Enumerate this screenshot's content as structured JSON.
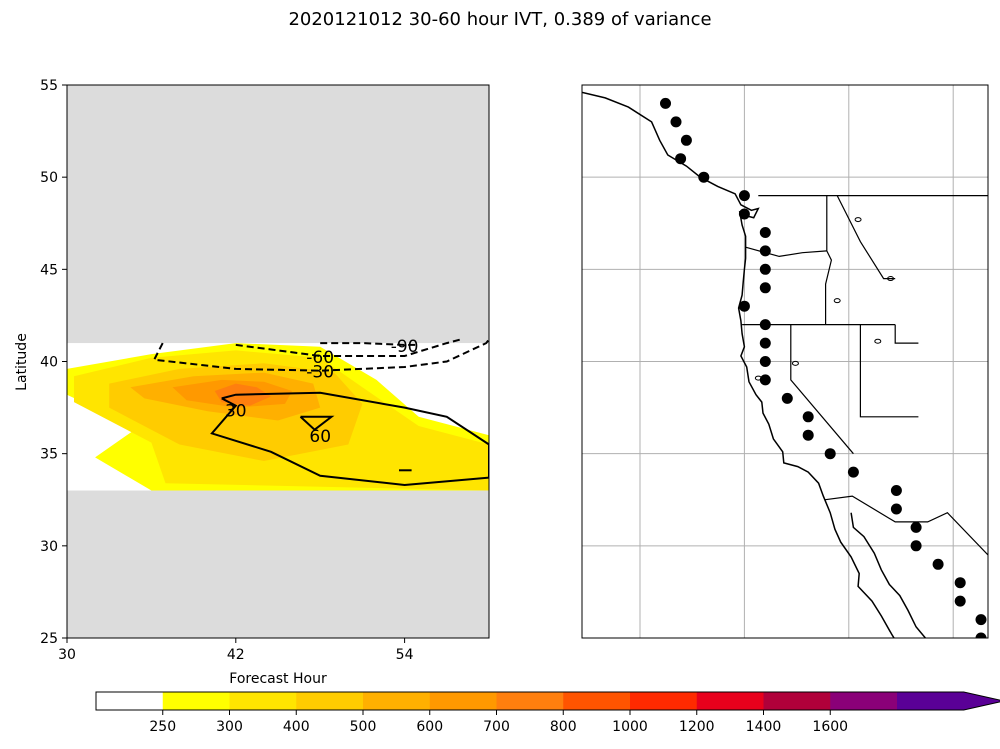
{
  "title": "2020121012 30-60 hour IVT, 0.389 of variance",
  "chart_data": [
    {
      "type": "contour",
      "xlabel": "Forecast Hour",
      "ylabel": "Latitude",
      "xlim": [
        30,
        60
      ],
      "ylim": [
        25,
        55
      ],
      "xticks": [
        30,
        42,
        54
      ],
      "yticks": [
        25,
        30,
        35,
        40,
        45,
        50,
        55
      ],
      "data_band_lat": [
        33,
        41
      ],
      "masked_color": "#dcdcdc",
      "filled_levels": [
        {
          "level": 250,
          "color": "#ffff00",
          "outline": [
            [
              30,
              39.6
            ],
            [
              36,
              40.4
            ],
            [
              42,
              41
            ],
            [
              48,
              40.8
            ],
            [
              52,
              39
            ],
            [
              55,
              37
            ],
            [
              60,
              36
            ],
            [
              60,
              33
            ],
            [
              36,
              33
            ],
            [
              32,
              34.8
            ],
            [
              35,
              36.4
            ],
            [
              30,
              38.2
            ]
          ]
        },
        {
          "level": 300,
          "color": "#ffe500",
          "outline": [
            [
              30.5,
              39.2
            ],
            [
              36,
              40.2
            ],
            [
              42,
              40.6
            ],
            [
              48,
              40.2
            ],
            [
              51,
              38.6
            ],
            [
              55,
              36.5
            ],
            [
              60,
              35.5
            ],
            [
              60,
              33
            ],
            [
              37,
              33.4
            ],
            [
              36,
              35.6
            ],
            [
              30.5,
              37.8
            ]
          ]
        },
        {
          "level": 400,
          "color": "#ffcc00",
          "outline": [
            [
              33,
              38.8
            ],
            [
              38,
              39.6
            ],
            [
              44,
              39.9
            ],
            [
              49,
              39.4
            ],
            [
              51,
              37.7
            ],
            [
              50,
              35.5
            ],
            [
              44,
              34.6
            ],
            [
              38,
              35.5
            ],
            [
              33,
              37.5
            ]
          ]
        },
        {
          "level": 500,
          "color": "#ffb000",
          "outline": [
            [
              34.5,
              38.6
            ],
            [
              39,
              39.2
            ],
            [
              44,
              39.4
            ],
            [
              47.5,
              38.8
            ],
            [
              48,
              37.5
            ],
            [
              45,
              36.8
            ],
            [
              40,
              37.3
            ],
            [
              35.5,
              38
            ]
          ]
        },
        {
          "level": 600,
          "color": "#ff9900",
          "outline": [
            [
              37.5,
              38.6
            ],
            [
              41,
              39
            ],
            [
              44,
              38.9
            ],
            [
              46,
              38.4
            ],
            [
              45.5,
              37.7
            ],
            [
              42,
              37.5
            ],
            [
              38.5,
              37.9
            ]
          ]
        },
        {
          "level": 700,
          "color": "#ff7f0e",
          "outline": [
            [
              40.5,
              38.4
            ],
            [
              42,
              38.8
            ],
            [
              43.5,
              38.6
            ],
            [
              44.5,
              38.1
            ],
            [
              43,
              37.6
            ],
            [
              41,
              37.8
            ]
          ]
        }
      ],
      "contours": [
        {
          "label": "-90",
          "style": "dashed",
          "points": [
            [
              36.8,
              41
            ],
            [
              36.2,
              40.1
            ],
            [
              42,
              39.6
            ],
            [
              48,
              39.5
            ],
            [
              54,
              39.7
            ],
            [
              57,
              40
            ],
            [
              59.8,
              41
            ],
            [
              60,
              41.2
            ]
          ]
        },
        {
          "label": "-60",
          "style": "dashed",
          "points": [
            [
              42,
              40.9
            ],
            [
              45,
              40.6
            ],
            [
              48,
              40.3
            ],
            [
              54,
              40.3
            ],
            [
              57,
              41
            ],
            [
              58,
              41.2
            ]
          ]
        },
        {
          "label": "-30",
          "style": "dashed",
          "points": [
            [
              48,
              41
            ],
            [
              51,
              41
            ],
            [
              54,
              40.9
            ],
            [
              55,
              40.9
            ]
          ]
        },
        {
          "label": "30",
          "style": "solid",
          "points": [
            [
              41,
              38
            ],
            [
              42,
              37.6
            ],
            [
              40.3,
              36.1
            ],
            [
              44.5,
              35.1
            ],
            [
              48,
              33.8
            ],
            [
              54,
              33.3
            ],
            [
              60,
              33.7
            ],
            [
              60,
              35.5
            ],
            [
              57,
              37
            ],
            [
              54,
              37.5
            ],
            [
              48,
              38.3
            ],
            [
              42,
              38.2
            ],
            [
              41,
              38
            ]
          ]
        },
        {
          "label": "60",
          "style": "solid",
          "points": [
            [
              46.6,
              37
            ],
            [
              48.8,
              37
            ],
            [
              47.6,
              36.3
            ],
            [
              46.6,
              37
            ]
          ]
        },
        {
          "label": "",
          "style": "solid",
          "points": [
            [
              53.6,
              34.1
            ],
            [
              54.5,
              34.1
            ]
          ]
        }
      ],
      "contour_labels": [
        {
          "text": "-90",
          "x": 54,
          "y": 40.8
        },
        {
          "text": "-60",
          "x": 48,
          "y": 40.2
        },
        {
          "text": "-30",
          "x": 48,
          "y": 39.4
        },
        {
          "text": "30",
          "x": 42,
          "y": 37.3
        },
        {
          "text": "60",
          "x": 48,
          "y": 35.9
        }
      ]
    },
    {
      "type": "map",
      "lon_range": [
        -138,
        -103
      ],
      "lat_range": [
        25,
        55
      ],
      "meridians": [
        -133,
        -124,
        -115,
        -106
      ],
      "parallels": [
        30,
        35,
        40,
        45,
        50
      ],
      "stations": [
        [
          -130.8,
          54.0
        ],
        [
          -129.9,
          53.0
        ],
        [
          -129.0,
          52.0
        ],
        [
          -129.5,
          51.0
        ],
        [
          -127.5,
          50.0
        ],
        [
          -124.0,
          49.0
        ],
        [
          -124.0,
          48.0
        ],
        [
          -122.2,
          47.0
        ],
        [
          -122.2,
          46.0
        ],
        [
          -122.2,
          45.0
        ],
        [
          -122.2,
          44.0
        ],
        [
          -124.0,
          43.0
        ],
        [
          -122.2,
          42.0
        ],
        [
          -122.2,
          41.0
        ],
        [
          -122.2,
          40.0
        ],
        [
          -122.2,
          39.0
        ],
        [
          -120.3,
          38.0
        ],
        [
          -118.5,
          37.0
        ],
        [
          -118.5,
          36.0
        ],
        [
          -116.6,
          35.0
        ],
        [
          -114.6,
          34.0
        ],
        [
          -110.9,
          33.0
        ],
        [
          -110.9,
          32.0
        ],
        [
          -109.2,
          31.0
        ],
        [
          -109.2,
          30.0
        ],
        [
          -107.3,
          29.0
        ],
        [
          -105.4,
          28.0
        ],
        [
          -105.4,
          27.0
        ],
        [
          -103.6,
          26.0
        ],
        [
          -103.6,
          25.0
        ]
      ]
    },
    {
      "type": "colorbar",
      "ticks": [
        "250",
        "300",
        "400",
        "500",
        "600",
        "700",
        "800",
        "1000",
        "1200",
        "1400",
        "1600"
      ],
      "colors": [
        "#ffffff",
        "#ffff00",
        "#ffe500",
        "#ffcc00",
        "#ffb000",
        "#ff9900",
        "#ff7f0e",
        "#ff5400",
        "#ff2a00",
        "#e8001c",
        "#b0003a",
        "#8a0078",
        "#5a0096"
      ],
      "extend": "max"
    }
  ]
}
